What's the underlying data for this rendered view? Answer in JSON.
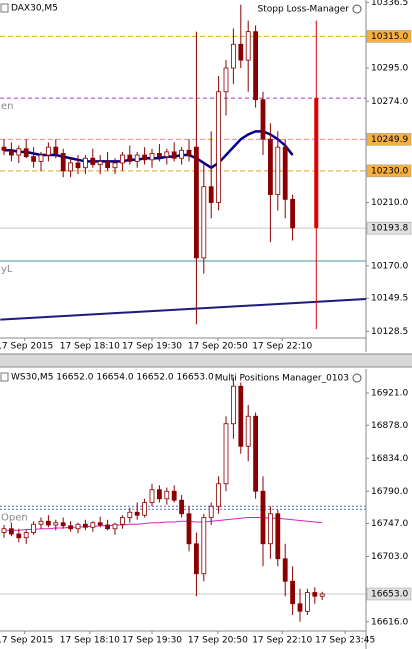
{
  "chart_data": [
    {
      "type": "candlestick",
      "title": "DAX30,M5",
      "panel": "Stopp Loss-Manager",
      "ylim": [
        10125,
        10338
      ],
      "yticks": [
        10336.5,
        {
          "value": 10315,
          "label": "10315.0"
        },
        {
          "value": 10295,
          "label": "10295.0"
        },
        {
          "value": 10274,
          "label": "10274.0"
        },
        10249.9,
        {
          "value": 10230,
          "label": "10230.0"
        },
        {
          "value": 10210,
          "label": "10210.0"
        },
        10193.8,
        {
          "value": 10170,
          "label": "10170.0"
        },
        10149.5,
        10128.5
      ],
      "xticks": [
        {
          "value": 2.8,
          "label": "17 Sep 2015"
        },
        {
          "value": 11.6,
          "label": "17 Sep 18:10"
        },
        {
          "value": 20,
          "label": "17 Sep 19:30"
        },
        {
          "value": 28.9,
          "label": "17 Sep 20:50"
        },
        {
          "value": 37.6,
          "label": "17 Sep 22:10"
        }
      ],
      "candle_color": "#8b0000",
      "open": [
        10245,
        10243,
        10240,
        10244,
        10239,
        10236,
        10240,
        10245,
        10241,
        10230,
        10235,
        10232,
        10238,
        10234,
        10236,
        10232,
        10235,
        10240,
        10236,
        10240,
        10237,
        10241,
        10239,
        10242,
        10238,
        10243,
        10245,
        10175,
        10220,
        10210,
        10280,
        10295,
        10310,
        10300,
        10318,
        10275,
        10250,
        10215,
        10245,
        10212
      ],
      "high": [
        10250,
        10248,
        10246,
        10250,
        10245,
        10242,
        10248,
        10250,
        10244,
        10238,
        10240,
        10240,
        10244,
        10240,
        10242,
        10238,
        10242,
        10246,
        10242,
        10245,
        10244,
        10247,
        10244,
        10248,
        10245,
        10250,
        10318,
        10235,
        10255,
        10290,
        10300,
        10320,
        10335,
        10325,
        10322,
        10280,
        10260,
        10255,
        10250,
        10215
      ],
      "low": [
        10240,
        10236,
        10235,
        10238,
        10232,
        10230,
        10236,
        10238,
        10226,
        10226,
        10228,
        10228,
        10232,
        10228,
        10230,
        10228,
        10230,
        10234,
        10232,
        10234,
        10232,
        10236,
        10234,
        10236,
        10234,
        10236,
        10133,
        10165,
        10200,
        10205,
        10265,
        10285,
        10295,
        10280,
        10270,
        10240,
        10185,
        10205,
        10200,
        10186
      ],
      "close": [
        10243,
        10240,
        10244,
        10239,
        10236,
        10240,
        10245,
        10241,
        10230,
        10235,
        10232,
        10238,
        10234,
        10236,
        10232,
        10235,
        10240,
        10236,
        10240,
        10237,
        10241,
        10239,
        10242,
        10238,
        10243,
        10240,
        10175,
        10220,
        10210,
        10280,
        10295,
        10310,
        10300,
        10318,
        10275,
        10250,
        10215,
        10245,
        10212,
        10194
      ],
      "indicators": [
        {
          "color": "#00008b",
          "width": 2.5,
          "values": [
            10243,
            10243,
            10242,
            10242,
            10241,
            10240,
            10240,
            10240,
            10239,
            10238,
            10237,
            10236,
            10236,
            10236,
            10236,
            10236,
            10236,
            10237,
            10237,
            10238,
            10238,
            10238,
            10239,
            10239,
            10240,
            10240,
            10238,
            10235,
            10232,
            10235,
            10240,
            10245,
            10250,
            10253,
            10255,
            10255,
            10253,
            10250,
            10246,
            10240
          ]
        }
      ],
      "levels": [
        {
          "value": 10315,
          "color": "#e8a020",
          "dash": "5 3",
          "box": "#f5b041"
        },
        {
          "value": 10276,
          "color": "#a040c0",
          "dash": "4 3",
          "label": "en"
        },
        {
          "value": 10249.9,
          "color": "#e8a020",
          "dash": "5 3",
          "box": "#f5b041"
        },
        {
          "value": 10230,
          "color": "#e8a020",
          "dash": "5 3",
          "box": "#f5b041"
        },
        {
          "value": 10193.8,
          "color": "#c8c8c8",
          "box": "#e0e0e0"
        },
        {
          "value": 10173,
          "color": "#3a9a9a",
          "label": "yL"
        }
      ],
      "trendline": {
        "x": [
          -0.5,
          49
        ],
        "values": [
          10136,
          10149
        ],
        "color": "#1a1a80"
      },
      "stop_marker": {
        "x": 42.2,
        "range": [
          10325,
          10130
        ],
        "bar": [
          10276,
          10193.8
        ],
        "color": "#e00000"
      }
    },
    {
      "type": "candlestick",
      "title": "WS30,M5 16652.0 16654.0 16652.0 16653.0",
      "panel": "Multi Positions Manager_0103",
      "ylim": [
        16605,
        16953
      ],
      "yticks": [
        {
          "value": 16921,
          "label": "16921.0"
        },
        {
          "value": 16878,
          "label": "16878.0"
        },
        {
          "value": 16834,
          "label": "16834.0"
        },
        {
          "value": 16790,
          "label": "16790.0"
        },
        {
          "value": 16747,
          "label": "16747.0"
        },
        {
          "value": 16703,
          "label": "16703.0"
        },
        {
          "value": 16653,
          "label": "16653.0"
        },
        {
          "value": 16616,
          "label": "16616.0"
        }
      ],
      "xticks": [
        {
          "value": 2.8,
          "label": "17 Sep 2015"
        },
        {
          "value": 11.6,
          "label": "17 Sep 18:10"
        },
        {
          "value": 20,
          "label": "17 Sep 19:30"
        },
        {
          "value": 28.9,
          "label": "17 Sep 20:50"
        },
        {
          "value": 37.6,
          "label": "17 Sep 22:10"
        },
        {
          "value": 46.1,
          "label": "17 Sep 23:45"
        }
      ],
      "candle_color": "#8b0000",
      "open": [
        16735,
        16740,
        16733,
        16728,
        16735,
        16746,
        16750,
        16745,
        16748,
        16744,
        16740,
        16746,
        16742,
        16748,
        16745,
        16740,
        16746,
        16755,
        16762,
        16758,
        16775,
        16792,
        16780,
        16790,
        16778,
        16760,
        16720,
        16680,
        16755,
        16770,
        16800,
        16880,
        16930,
        16850,
        16890,
        16790,
        16720,
        16760,
        16700,
        16670,
        16640,
        16630,
        16655,
        16650
      ],
      "high": [
        16745,
        16748,
        16740,
        16738,
        16750,
        16755,
        16758,
        16752,
        16755,
        16750,
        16748,
        16752,
        16750,
        16756,
        16752,
        16748,
        16758,
        16768,
        16775,
        16780,
        16800,
        16798,
        16795,
        16798,
        16785,
        16770,
        16735,
        16760,
        16775,
        16810,
        16890,
        16942,
        16935,
        16905,
        16895,
        16810,
        16770,
        16765,
        16720,
        16690,
        16660,
        16660,
        16662,
        16656
      ],
      "low": [
        16728,
        16730,
        16722,
        16720,
        16732,
        16740,
        16742,
        16738,
        16740,
        16736,
        16734,
        16738,
        16736,
        16742,
        16738,
        16732,
        16740,
        16748,
        16752,
        16755,
        16770,
        16775,
        16772,
        16775,
        16755,
        16710,
        16650,
        16670,
        16745,
        16760,
        16790,
        16860,
        16840,
        16830,
        16780,
        16690,
        16700,
        16690,
        16650,
        16625,
        16616,
        16625,
        16640,
        16645
      ],
      "close": [
        16740,
        16733,
        16728,
        16735,
        16746,
        16750,
        16745,
        16748,
        16744,
        16740,
        16746,
        16742,
        16748,
        16745,
        16740,
        16746,
        16755,
        16762,
        16758,
        16775,
        16792,
        16780,
        16790,
        16778,
        16760,
        16720,
        16680,
        16755,
        16770,
        16800,
        16880,
        16930,
        16850,
        16890,
        16790,
        16720,
        16760,
        16700,
        16670,
        16640,
        16630,
        16655,
        16650,
        16653
      ],
      "indicators": [
        {
          "color": "#e020c0",
          "width": 1,
          "values": [
            16738,
            16738,
            16738,
            16739,
            16739,
            16740,
            16740,
            16741,
            16741,
            16742,
            16742,
            16743,
            16743,
            16744,
            16744,
            16745,
            16745,
            16746,
            16746,
            16747,
            16748,
            16748,
            16749,
            16749,
            16750,
            16750,
            16749,
            16749,
            16750,
            16751,
            16752,
            16753,
            16754,
            16755,
            16755,
            16755,
            16754,
            16754,
            16753,
            16752,
            16751,
            16750,
            16749,
            16748
          ]
        }
      ],
      "levels": [
        {
          "value": 16770,
          "color": "#5070c0",
          "dash": "2 2"
        },
        {
          "value": 16766,
          "color": "#5070c0",
          "dash": "2 2",
          "label": "Open"
        },
        {
          "value": 16653,
          "color": "#c8c8c8",
          "box": "#e0e0e0"
        }
      ]
    }
  ]
}
